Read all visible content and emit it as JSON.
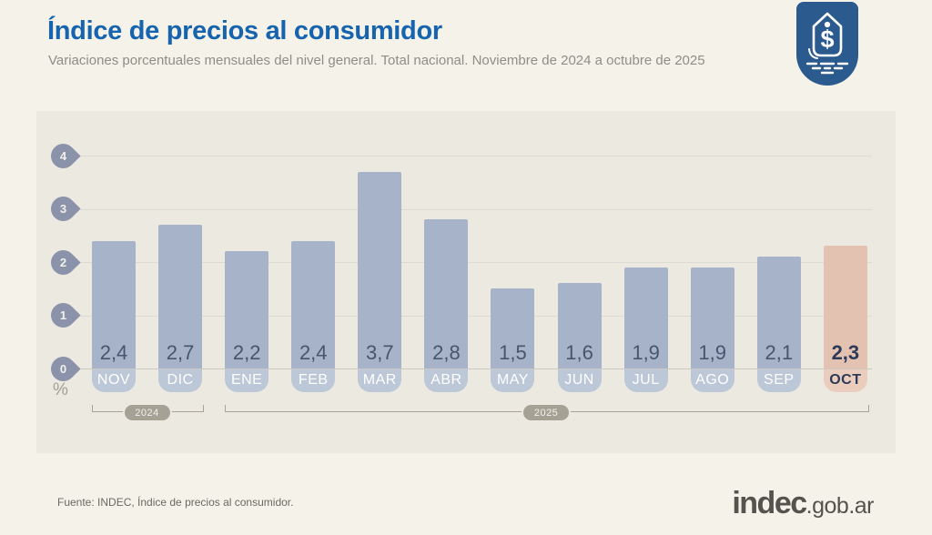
{
  "header": {
    "title": "Índice de precios al consumidor",
    "subtitle": "Variaciones porcentuales mensuales del nivel general. Total nacional. Noviembre de 2024 a octubre de 2025",
    "badge_icon": "price-tag-dollar-icon",
    "badge_color": "#2b5b8e",
    "title_color": "#1663ae"
  },
  "chart_data": {
    "type": "bar",
    "title": "Índice de precios al consumidor",
    "subtitle": "Variaciones porcentuales mensuales del nivel general. Total nacional. Noviembre de 2024 a octubre de 2025",
    "categories": [
      "NOV",
      "DIC",
      "ENE",
      "FEB",
      "MAR",
      "ABR",
      "MAY",
      "JUN",
      "JUL",
      "AGO",
      "SEP",
      "OCT"
    ],
    "values": [
      2.4,
      2.7,
      2.2,
      2.4,
      3.7,
      2.8,
      1.5,
      1.6,
      1.9,
      1.9,
      2.1,
      2.3
    ],
    "value_labels": [
      "2,4",
      "2,7",
      "2,2",
      "2,4",
      "3,7",
      "2,8",
      "1,5",
      "1,6",
      "1,9",
      "1,9",
      "2,1",
      "2,3"
    ],
    "highlight_index": 11,
    "y_ticks": [
      0,
      1,
      2,
      3,
      4
    ],
    "ylim": [
      0,
      4
    ],
    "ylabel": "%",
    "grid": true,
    "legend": false,
    "year_groups": [
      {
        "label": "2024",
        "from": 0,
        "to": 1
      },
      {
        "label": "2025",
        "from": 2,
        "to": 11
      }
    ],
    "colors": {
      "bar": "#a6b3c9",
      "bar_pill": "#bcc7d7",
      "highlight_bar": "#e4c2b2",
      "highlight_pill": "#eacdbd",
      "value_text": "#49556e",
      "highlight_text": "#2d3a58",
      "tick_marker": "#8b93ab"
    }
  },
  "footer": {
    "source": "Fuente: INDEC, Índice de precios al consumidor.",
    "logo_primary": "indec",
    "logo_suffix": ".gob.ar"
  }
}
